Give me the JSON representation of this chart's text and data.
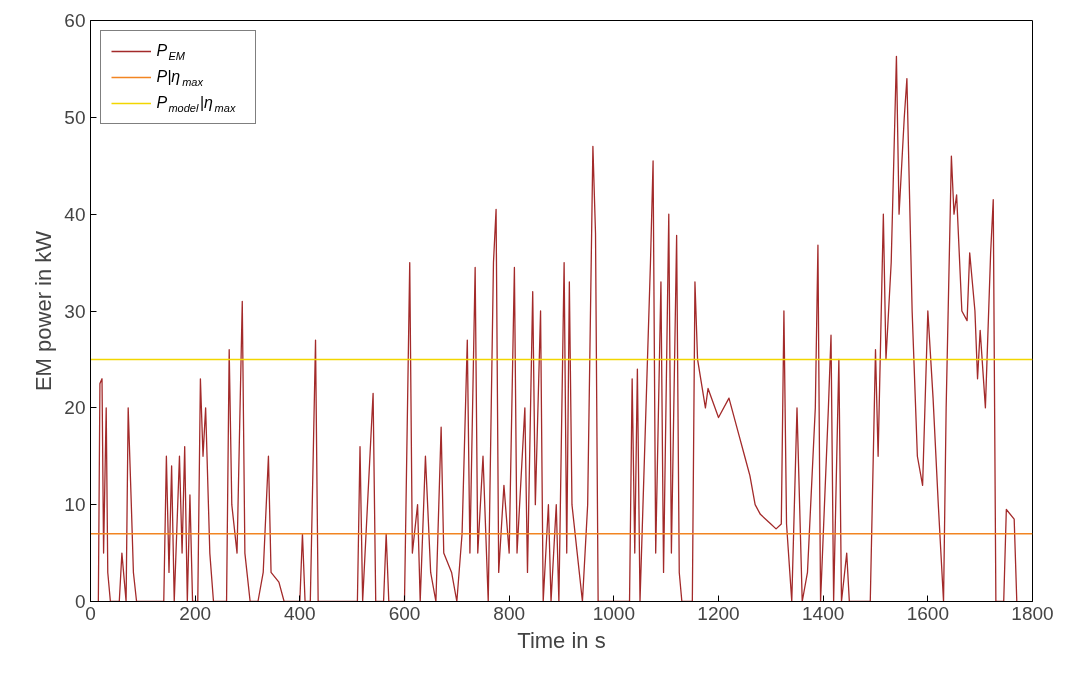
{
  "chart_data": {
    "type": "line",
    "xlabel": "Time in s",
    "ylabel": "EM power in kW",
    "xlim": [
      0,
      1800
    ],
    "ylim": [
      0,
      60
    ],
    "xticks": [
      0,
      200,
      400,
      600,
      800,
      1000,
      1200,
      1400,
      1600,
      1800
    ],
    "yticks": [
      0,
      10,
      20,
      30,
      40,
      50,
      60
    ],
    "grid": false,
    "legend": "top left",
    "marker": "none",
    "line_style": "solid",
    "series": [
      {
        "name": "P$_{EM}$",
        "color": "#a32a2a",
        "x": [
          15,
          18,
          22,
          25,
          30,
          33,
          38,
          55,
          60,
          68,
          72,
          78,
          82,
          88,
          140,
          145,
          150,
          155,
          160,
          170,
          175,
          180,
          185,
          190,
          195,
          205,
          210,
          215,
          220,
          228,
          235,
          260,
          265,
          270,
          280,
          290,
          295,
          305,
          320,
          330,
          340,
          345,
          360,
          370,
          400,
          405,
          410,
          420,
          430,
          435,
          510,
          515,
          520,
          540,
          545,
          560,
          565,
          570,
          600,
          610,
          615,
          625,
          630,
          640,
          650,
          660,
          670,
          675,
          690,
          700,
          710,
          720,
          725,
          735,
          740,
          750,
          760,
          770,
          775,
          780,
          790,
          800,
          810,
          815,
          830,
          835,
          845,
          850,
          860,
          865,
          875,
          880,
          890,
          895,
          905,
          910,
          915,
          920,
          930,
          940,
          950,
          960,
          965,
          970,
          1030,
          1035,
          1040,
          1045,
          1050,
          1070,
          1075,
          1080,
          1090,
          1095,
          1105,
          1110,
          1120,
          1125,
          1130,
          1150,
          1155,
          1160,
          1175,
          1180,
          1200,
          1220,
          1240,
          1250,
          1260,
          1270,
          1280,
          1300,
          1310,
          1320,
          1325,
          1330,
          1340,
          1350,
          1360,
          1370,
          1385,
          1390,
          1395,
          1410,
          1415,
          1420,
          1430,
          1435,
          1445,
          1450,
          1490,
          1500,
          1505,
          1515,
          1520,
          1530,
          1540,
          1545,
          1555,
          1560,
          1570,
          1580,
          1590,
          1600,
          1610,
          1620,
          1630,
          1635,
          1645,
          1650,
          1655,
          1665,
          1675,
          1680,
          1690,
          1695,
          1700,
          1710,
          1720,
          1725,
          1730,
          1745,
          1750,
          1765,
          1770
        ],
        "values": [
          0,
          22.5,
          23,
          5,
          20,
          3,
          0,
          0,
          5,
          0,
          20,
          10,
          3,
          0,
          0,
          15,
          3,
          14,
          0,
          15,
          5,
          16,
          0,
          11,
          0,
          0,
          23,
          15,
          20,
          5,
          0,
          0,
          26,
          10,
          5,
          31,
          5,
          0,
          0,
          3,
          15,
          3,
          2,
          0,
          0,
          7,
          0,
          0,
          27,
          0,
          0,
          16,
          0,
          21.5,
          0,
          0,
          7,
          0,
          0,
          35,
          5,
          10,
          0,
          15,
          3,
          0,
          18,
          5,
          3,
          0,
          7,
          27,
          5,
          34.5,
          5,
          15,
          0,
          35,
          40.5,
          3,
          12,
          5,
          34.5,
          5,
          20,
          3,
          32,
          10,
          30,
          0,
          10,
          0,
          10,
          0,
          35,
          5,
          33,
          10,
          5,
          0,
          10,
          47,
          38,
          0,
          0,
          23,
          5,
          24,
          0,
          35,
          45.5,
          5,
          33,
          3,
          40,
          5,
          37.8,
          3,
          0,
          0,
          33,
          25,
          20,
          22,
          19,
          21,
          17,
          15,
          13,
          10,
          9,
          8,
          7.5,
          8,
          30,
          8,
          0,
          20,
          0,
          3,
          20,
          36.8,
          0,
          20,
          27.5,
          0,
          25,
          0,
          5,
          0,
          0,
          26,
          15,
          40,
          25,
          35,
          56.3,
          40,
          50,
          54,
          30,
          15,
          12,
          30,
          21,
          10,
          0,
          20,
          46,
          40,
          42,
          30,
          29,
          36,
          30,
          23,
          28,
          20,
          36,
          41.5,
          0,
          0,
          9.5,
          8.5,
          0
        ]
      }
    ],
    "ref_lines": [
      {
        "axis": "y",
        "value": 7,
        "label": "P|η$_{max}$",
        "color": "#f28522"
      },
      {
        "axis": "y",
        "value": 25,
        "label": "P$_{model}$|η$_{max}$",
        "color": "#f2d600"
      }
    ]
  }
}
